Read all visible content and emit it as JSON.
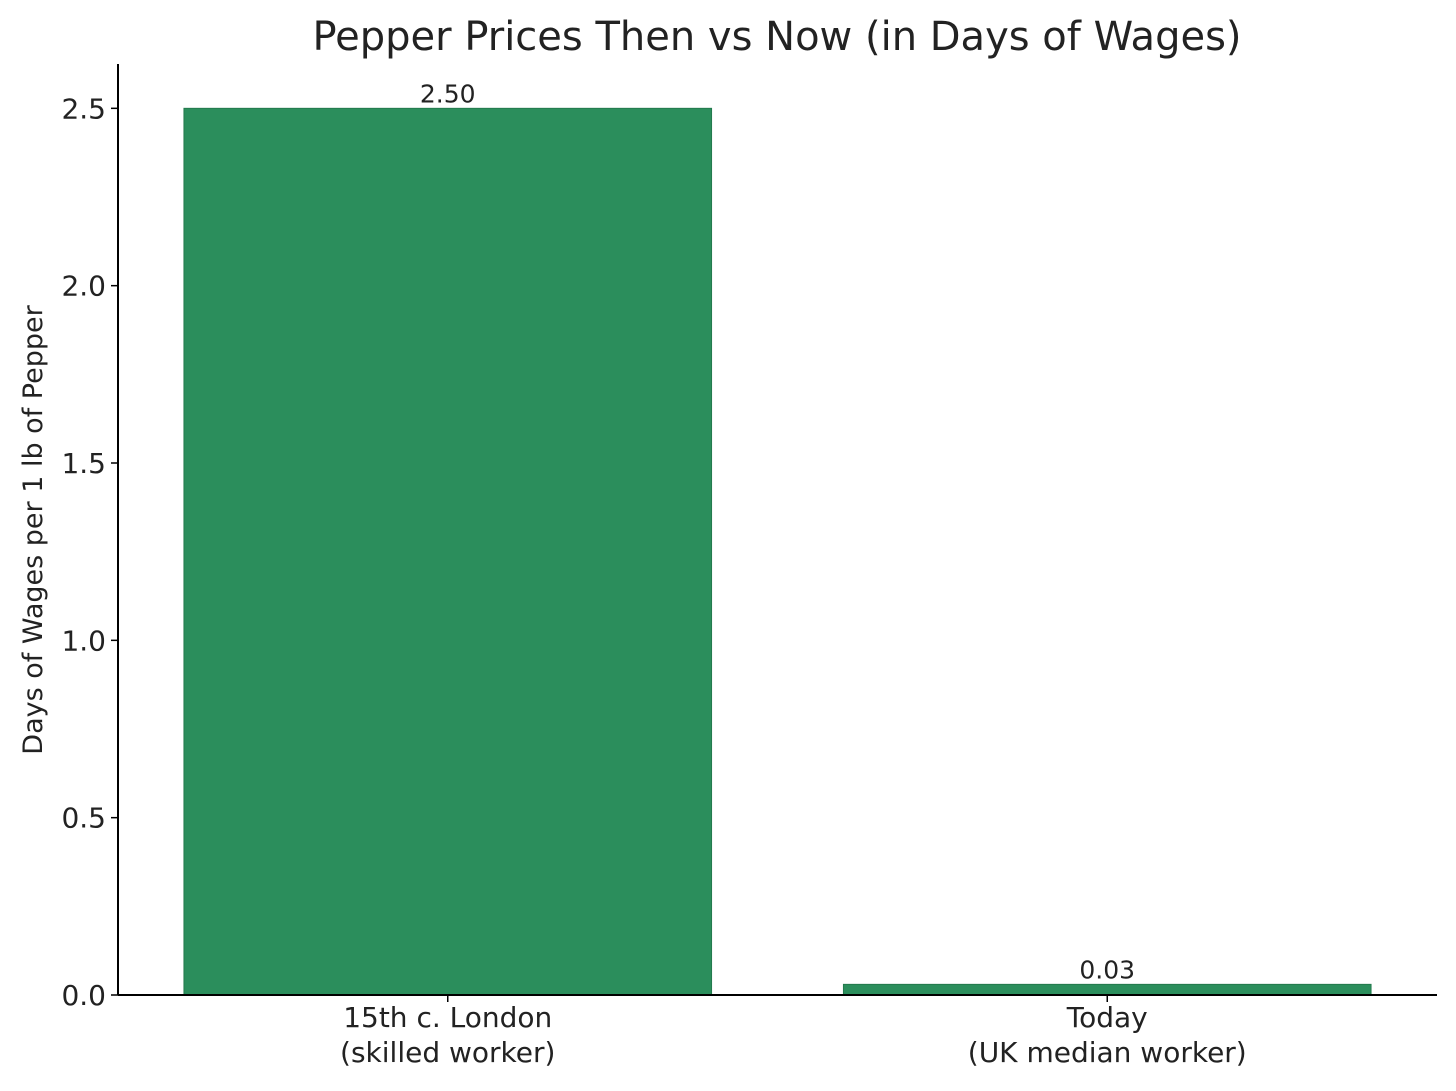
{
  "chart_data": {
    "type": "bar",
    "title": "Pepper Prices Then vs Now (in Days of Wages)",
    "xlabel": "",
    "ylabel": "Days of Wages per 1 lb of Pepper",
    "categories": [
      [
        "15th c. London",
        "(skilled worker)"
      ],
      [
        "Today",
        "(UK median worker)"
      ]
    ],
    "values": [
      2.5,
      0.03
    ],
    "value_labels": [
      "2.50",
      "0.03"
    ],
    "ylim": [
      0,
      2.625
    ],
    "yticks": [
      0.0,
      0.5,
      1.0,
      1.5,
      2.0,
      2.5
    ],
    "ytick_labels": [
      "0.0",
      "0.5",
      "1.0",
      "1.5",
      "2.0",
      "2.5"
    ],
    "grid": false,
    "legend": "none",
    "colors": {
      "bar": "#2b8e5c",
      "bar_edge": "#237a4d",
      "axis": "#000000",
      "text": "#222222"
    }
  }
}
